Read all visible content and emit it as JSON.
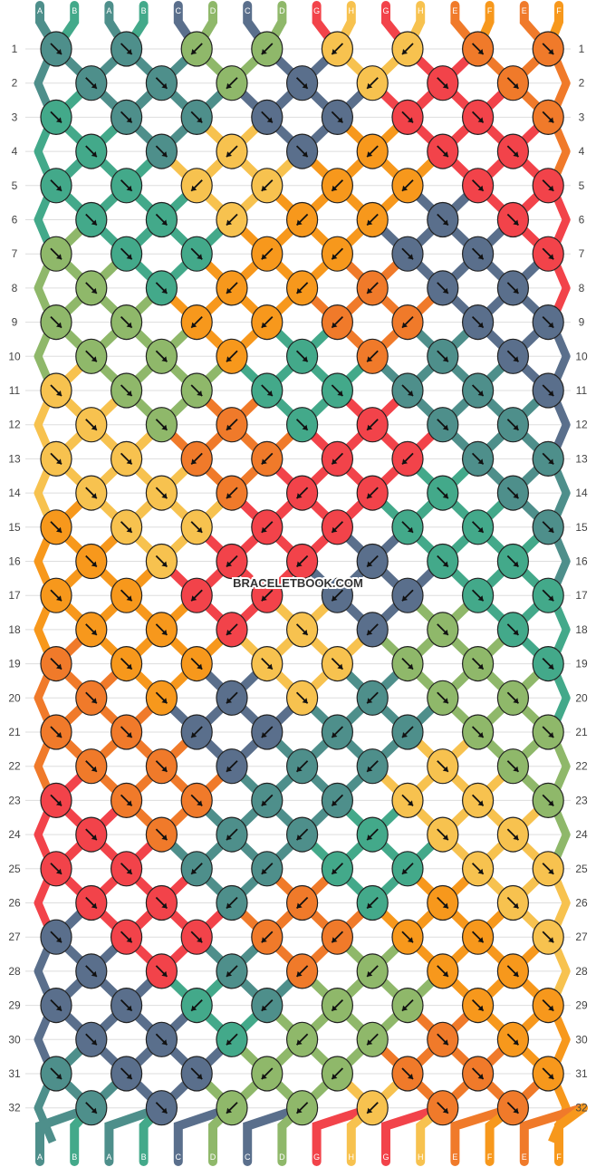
{
  "watermark": "BRACELETBOOK.COM",
  "colors": {
    "A": "#4e8f8b",
    "B": "#43a98a",
    "C": "#5a6f8c",
    "D": "#8fb86a",
    "G": "#f2434a",
    "H": "#f7c24f",
    "E": "#f07a2a",
    "F": "#f7981c"
  },
  "strands_top": [
    "A",
    "B",
    "A",
    "B",
    "C",
    "D",
    "C",
    "D",
    "G",
    "H",
    "G",
    "H",
    "E",
    "F",
    "E",
    "F"
  ],
  "strands_bottom": [
    "A",
    "B",
    "A",
    "B",
    "C",
    "D",
    "C",
    "D",
    "G",
    "H",
    "G",
    "H",
    "E",
    "F",
    "E",
    "F"
  ],
  "row_labels": [
    "1",
    "2",
    "3",
    "4",
    "5",
    "6",
    "7",
    "8",
    "9",
    "10",
    "11",
    "12",
    "13",
    "14",
    "15",
    "16",
    "17",
    "18",
    "19",
    "20",
    "21",
    "22",
    "23",
    "24",
    "25",
    "26",
    "27",
    "28",
    "29",
    "30",
    "31",
    "32"
  ],
  "rows": [
    [
      "A:dr",
      "A:dr",
      "D:dl",
      "D:dl",
      "H:dl",
      "H:dl",
      "E:dr",
      "E:dr"
    ],
    [
      "A:dr",
      "A:dr",
      "D:dl",
      "C:dr",
      "H:dl",
      "G:dr",
      "E:dr"
    ],
    [
      "B:dr",
      "A:dr",
      "A:dr",
      "C:dr",
      "C:dr",
      "G:dr",
      "G:dr",
      "E:dr"
    ],
    [
      "B:dr",
      "A:dr",
      "H:dl",
      "C:dr",
      "F:dl",
      "G:dr",
      "G:dr"
    ],
    [
      "B:dr",
      "B:dr",
      "H:dl",
      "H:dl",
      "F:dl",
      "F:dl",
      "G:dr",
      "G:dr"
    ],
    [
      "B:dr",
      "B:dr",
      "H:dl",
      "F:dl",
      "F:dl",
      "C:dr",
      "G:dr"
    ],
    [
      "D:dr",
      "B:dr",
      "B:dr",
      "F:dl",
      "F:dl",
      "C:dr",
      "C:dr",
      "G:dr"
    ],
    [
      "D:dr",
      "B:dr",
      "F:dl",
      "F:dl",
      "E:dl",
      "C:dr",
      "C:dr"
    ],
    [
      "D:dr",
      "D:dr",
      "F:dl",
      "F:dl",
      "E:dl",
      "E:dl",
      "C:dr",
      "C:dr"
    ],
    [
      "D:dr",
      "D:dr",
      "F:dl",
      "B:dr",
      "E:dl",
      "A:dr",
      "C:dr"
    ],
    [
      "H:dr",
      "D:dr",
      "D:dr",
      "B:dr",
      "B:dr",
      "A:dr",
      "A:dr",
      "C:dr"
    ],
    [
      "H:dr",
      "D:dr",
      "E:dl",
      "B:dr",
      "G:dl",
      "A:dr",
      "A:dr"
    ],
    [
      "H:dr",
      "H:dr",
      "E:dl",
      "E:dl",
      "G:dl",
      "G:dl",
      "A:dr",
      "A:dr"
    ],
    [
      "H:dr",
      "H:dr",
      "E:dl",
      "G:dl",
      "G:dl",
      "B:dr",
      "A:dr"
    ],
    [
      "F:dr",
      "H:dr",
      "H:dr",
      "G:dl",
      "G:dl",
      "B:dr",
      "B:dr",
      "A:dr"
    ],
    [
      "F:dr",
      "H:dr",
      "G:dl",
      "G:dl",
      "C:dl",
      "B:dr",
      "B:dr"
    ],
    [
      "F:dr",
      "F:dr",
      "G:dl",
      "G:dl",
      "C:dl",
      "C:dl",
      "B:dr",
      "B:dr"
    ],
    [
      "F:dr",
      "F:dr",
      "G:dl",
      "H:dr",
      "C:dl",
      "D:dr",
      "B:dr"
    ],
    [
      "E:dr",
      "F:dr",
      "F:dr",
      "H:dr",
      "H:dr",
      "D:dr",
      "D:dr",
      "B:dr"
    ],
    [
      "E:dr",
      "F:dr",
      "C:dl",
      "H:dr",
      "A:dl",
      "D:dr",
      "D:dr"
    ],
    [
      "E:dr",
      "E:dr",
      "C:dl",
      "C:dl",
      "A:dl",
      "A:dl",
      "D:dr",
      "D:dr"
    ],
    [
      "E:dr",
      "E:dr",
      "C:dl",
      "A:dl",
      "A:dl",
      "H:dr",
      "D:dr"
    ],
    [
      "G:dr",
      "E:dr",
      "E:dr",
      "A:dl",
      "A:dl",
      "H:dr",
      "H:dr",
      "D:dr"
    ],
    [
      "G:dr",
      "E:dr",
      "A:dl",
      "A:dl",
      "B:dl",
      "H:dr",
      "H:dr"
    ],
    [
      "G:dr",
      "G:dr",
      "A:dl",
      "A:dl",
      "B:dl",
      "B:dl",
      "H:dr",
      "H:dr"
    ],
    [
      "G:dr",
      "G:dr",
      "A:dl",
      "E:dl",
      "B:dl",
      "F:dr",
      "H:dr"
    ],
    [
      "C:dr",
      "G:dr",
      "G:dr",
      "E:dl",
      "E:dl",
      "F:dr",
      "F:dr",
      "H:dr"
    ],
    [
      "C:dr",
      "G:dr",
      "A:dl",
      "E:dl",
      "D:dl",
      "F:dr",
      "F:dr"
    ],
    [
      "C:dr",
      "C:dr",
      "B:dl",
      "A:dl",
      "D:dl",
      "D:dl",
      "F:dr",
      "F:dr"
    ],
    [
      "C:dr",
      "C:dr",
      "B:dl",
      "D:dl",
      "D:dl",
      "E:dr",
      "F:dr"
    ],
    [
      "A:dr",
      "C:dr",
      "C:dr",
      "D:dl",
      "D:dl",
      "E:dr",
      "E:dr",
      "F:dr"
    ],
    [
      "A:dr",
      "C:dr",
      "D:dl",
      "D:dl",
      "H:dl",
      "E:dr",
      "E:dr"
    ]
  ]
}
